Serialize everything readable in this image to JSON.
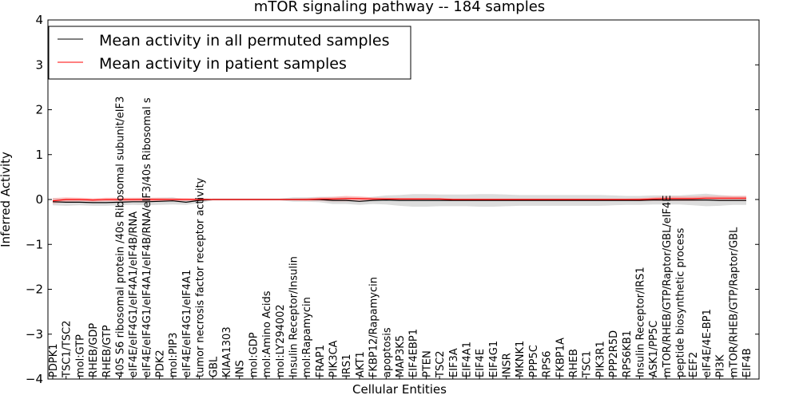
{
  "chart_data": {
    "type": "line",
    "title": "mTOR signaling pathway -- 184 samples",
    "xlabel": "Cellular Entities",
    "ylabel": "Inferred Activity",
    "ylim": [
      -4,
      4
    ],
    "yticks": [
      4,
      3,
      2,
      1,
      0,
      -1,
      -2,
      -3,
      -4
    ],
    "ytick_labels": [
      "4",
      "3",
      "2",
      "1",
      "0",
      "−1",
      "−2",
      "−3",
      "−4"
    ],
    "categories": [
      "PDPK1",
      "TSC1/TSC2",
      "mol:GTP",
      "RHEB/GDP",
      "RHEB/GTP",
      "40S S6 ribosomal protein /40s Ribosomal subunit/eIF3",
      "eIF4E/eIF4G1/eIF4A1/eIF4B/RNA",
      "eIF4E/eIF4G1/eIF4A1/eIF4B/RNA/eIF3/40s Ribosomal s",
      "PDK2",
      "mol:PIP3",
      "eIF4E/eIF4G1/eIF4A1",
      "tumor necrosis factor receptor activity",
      "GBL",
      "KIAA1303",
      "INS",
      "mol:GDP",
      "mol:Amino Acids",
      "mol:LY294002",
      "Insulin Receptor/Insulin",
      "mol:Rapamycin",
      "FRAP1",
      "PIK3CA",
      "IRS1",
      "AKT1",
      "FKBP12/Rapamycin",
      "apoptosis",
      "MAP3K5",
      "EIF4EBP1",
      "PTEN",
      "TSC2",
      "EIF3A",
      "EIF4A1",
      "EIF4E",
      "EIF4G1",
      "INSR",
      "MKNK1",
      "PPP5C",
      "RPS6",
      "FKBP1A",
      "RHEB",
      "TSC1",
      "PIK3R1",
      "PPP2R5D",
      "RPS6KB1",
      "Insulin Receptor/IRS1",
      "ASK1/PP5C",
      "mTOR/RHEB/GTP/Raptor/GBL/eIF4E",
      "peptide biosynthetic process",
      "EEF2",
      "eIF4E/4E-BP1",
      "PI3K",
      "mTOR/RHEB/GTP/Raptor/GBL",
      "EIF4B"
    ],
    "series": [
      {
        "name": "Mean activity in all permuted samples",
        "color": "#000000",
        "values": [
          -0.05,
          -0.06,
          -0.06,
          -0.07,
          -0.07,
          -0.06,
          -0.05,
          -0.05,
          -0.04,
          -0.03,
          -0.06,
          -0.02,
          0,
          0,
          0,
          0,
          0,
          0,
          0,
          0,
          0,
          -0.02,
          -0.02,
          -0.04,
          -0.02,
          -0.01,
          -0.02,
          -0.02,
          -0.02,
          -0.02,
          -0.02,
          -0.02,
          -0.02,
          -0.02,
          -0.02,
          -0.02,
          -0.02,
          -0.02,
          -0.02,
          -0.02,
          -0.02,
          -0.02,
          -0.02,
          -0.02,
          -0.02,
          -0.01,
          -0.01,
          -0.01,
          -0.01,
          -0.01,
          -0.02,
          -0.02,
          -0.02
        ],
        "band": [
          0.08,
          0.08,
          0.07,
          0.07,
          0.07,
          0.07,
          0.07,
          0.08,
          0.08,
          0.08,
          0.06,
          0.06,
          0.02,
          0.02,
          0.02,
          0.02,
          0.02,
          0.02,
          0.05,
          0.05,
          0.06,
          0.08,
          0.08,
          0.08,
          0.08,
          0.1,
          0.12,
          0.14,
          0.14,
          0.13,
          0.13,
          0.13,
          0.14,
          0.14,
          0.13,
          0.12,
          0.12,
          0.12,
          0.12,
          0.12,
          0.12,
          0.12,
          0.11,
          0.1,
          0.1,
          0.1,
          0.1,
          0.1,
          0.12,
          0.14,
          0.12,
          0.1,
          0.1
        ]
      },
      {
        "name": "Mean activity in patient samples",
        "color": "#ff0000",
        "values": [
          -0.03,
          0,
          0,
          -0.01,
          0,
          0,
          0,
          0,
          0,
          0,
          0,
          0,
          0,
          0,
          0,
          0,
          0,
          0,
          0,
          0,
          0.01,
          0.01,
          0.02,
          0.02,
          0.01,
          0.01,
          0.01,
          0.01,
          0.01,
          0.01,
          0,
          0,
          0,
          0,
          0,
          0,
          0,
          0,
          0,
          0,
          0,
          0,
          0,
          0,
          0,
          0.01,
          0.02,
          0.02,
          0.02,
          0.03,
          0.03,
          0.03,
          0.03
        ],
        "band": [
          0.06,
          0.05,
          0.04,
          0.04,
          0.04,
          0.04,
          0.04,
          0.04,
          0.04,
          0.03,
          0.03,
          0.02,
          0.01,
          0.01,
          0.01,
          0.01,
          0.01,
          0.01,
          0.02,
          0.03,
          0.04,
          0.05,
          0.06,
          0.05,
          0.04,
          0.03,
          0.02,
          0.02,
          0.02,
          0.02,
          0.02,
          0.02,
          0.02,
          0.02,
          0.02,
          0.02,
          0.02,
          0.02,
          0.02,
          0.02,
          0.02,
          0.02,
          0.02,
          0.02,
          0.03,
          0.04,
          0.05,
          0.05,
          0.05,
          0.05,
          0.05,
          0.05,
          0.05
        ]
      }
    ],
    "legend_position": "top-left",
    "colors": {
      "band": "#bfbfbf",
      "red_band": "#ff9999",
      "axis": "#000000"
    }
  }
}
